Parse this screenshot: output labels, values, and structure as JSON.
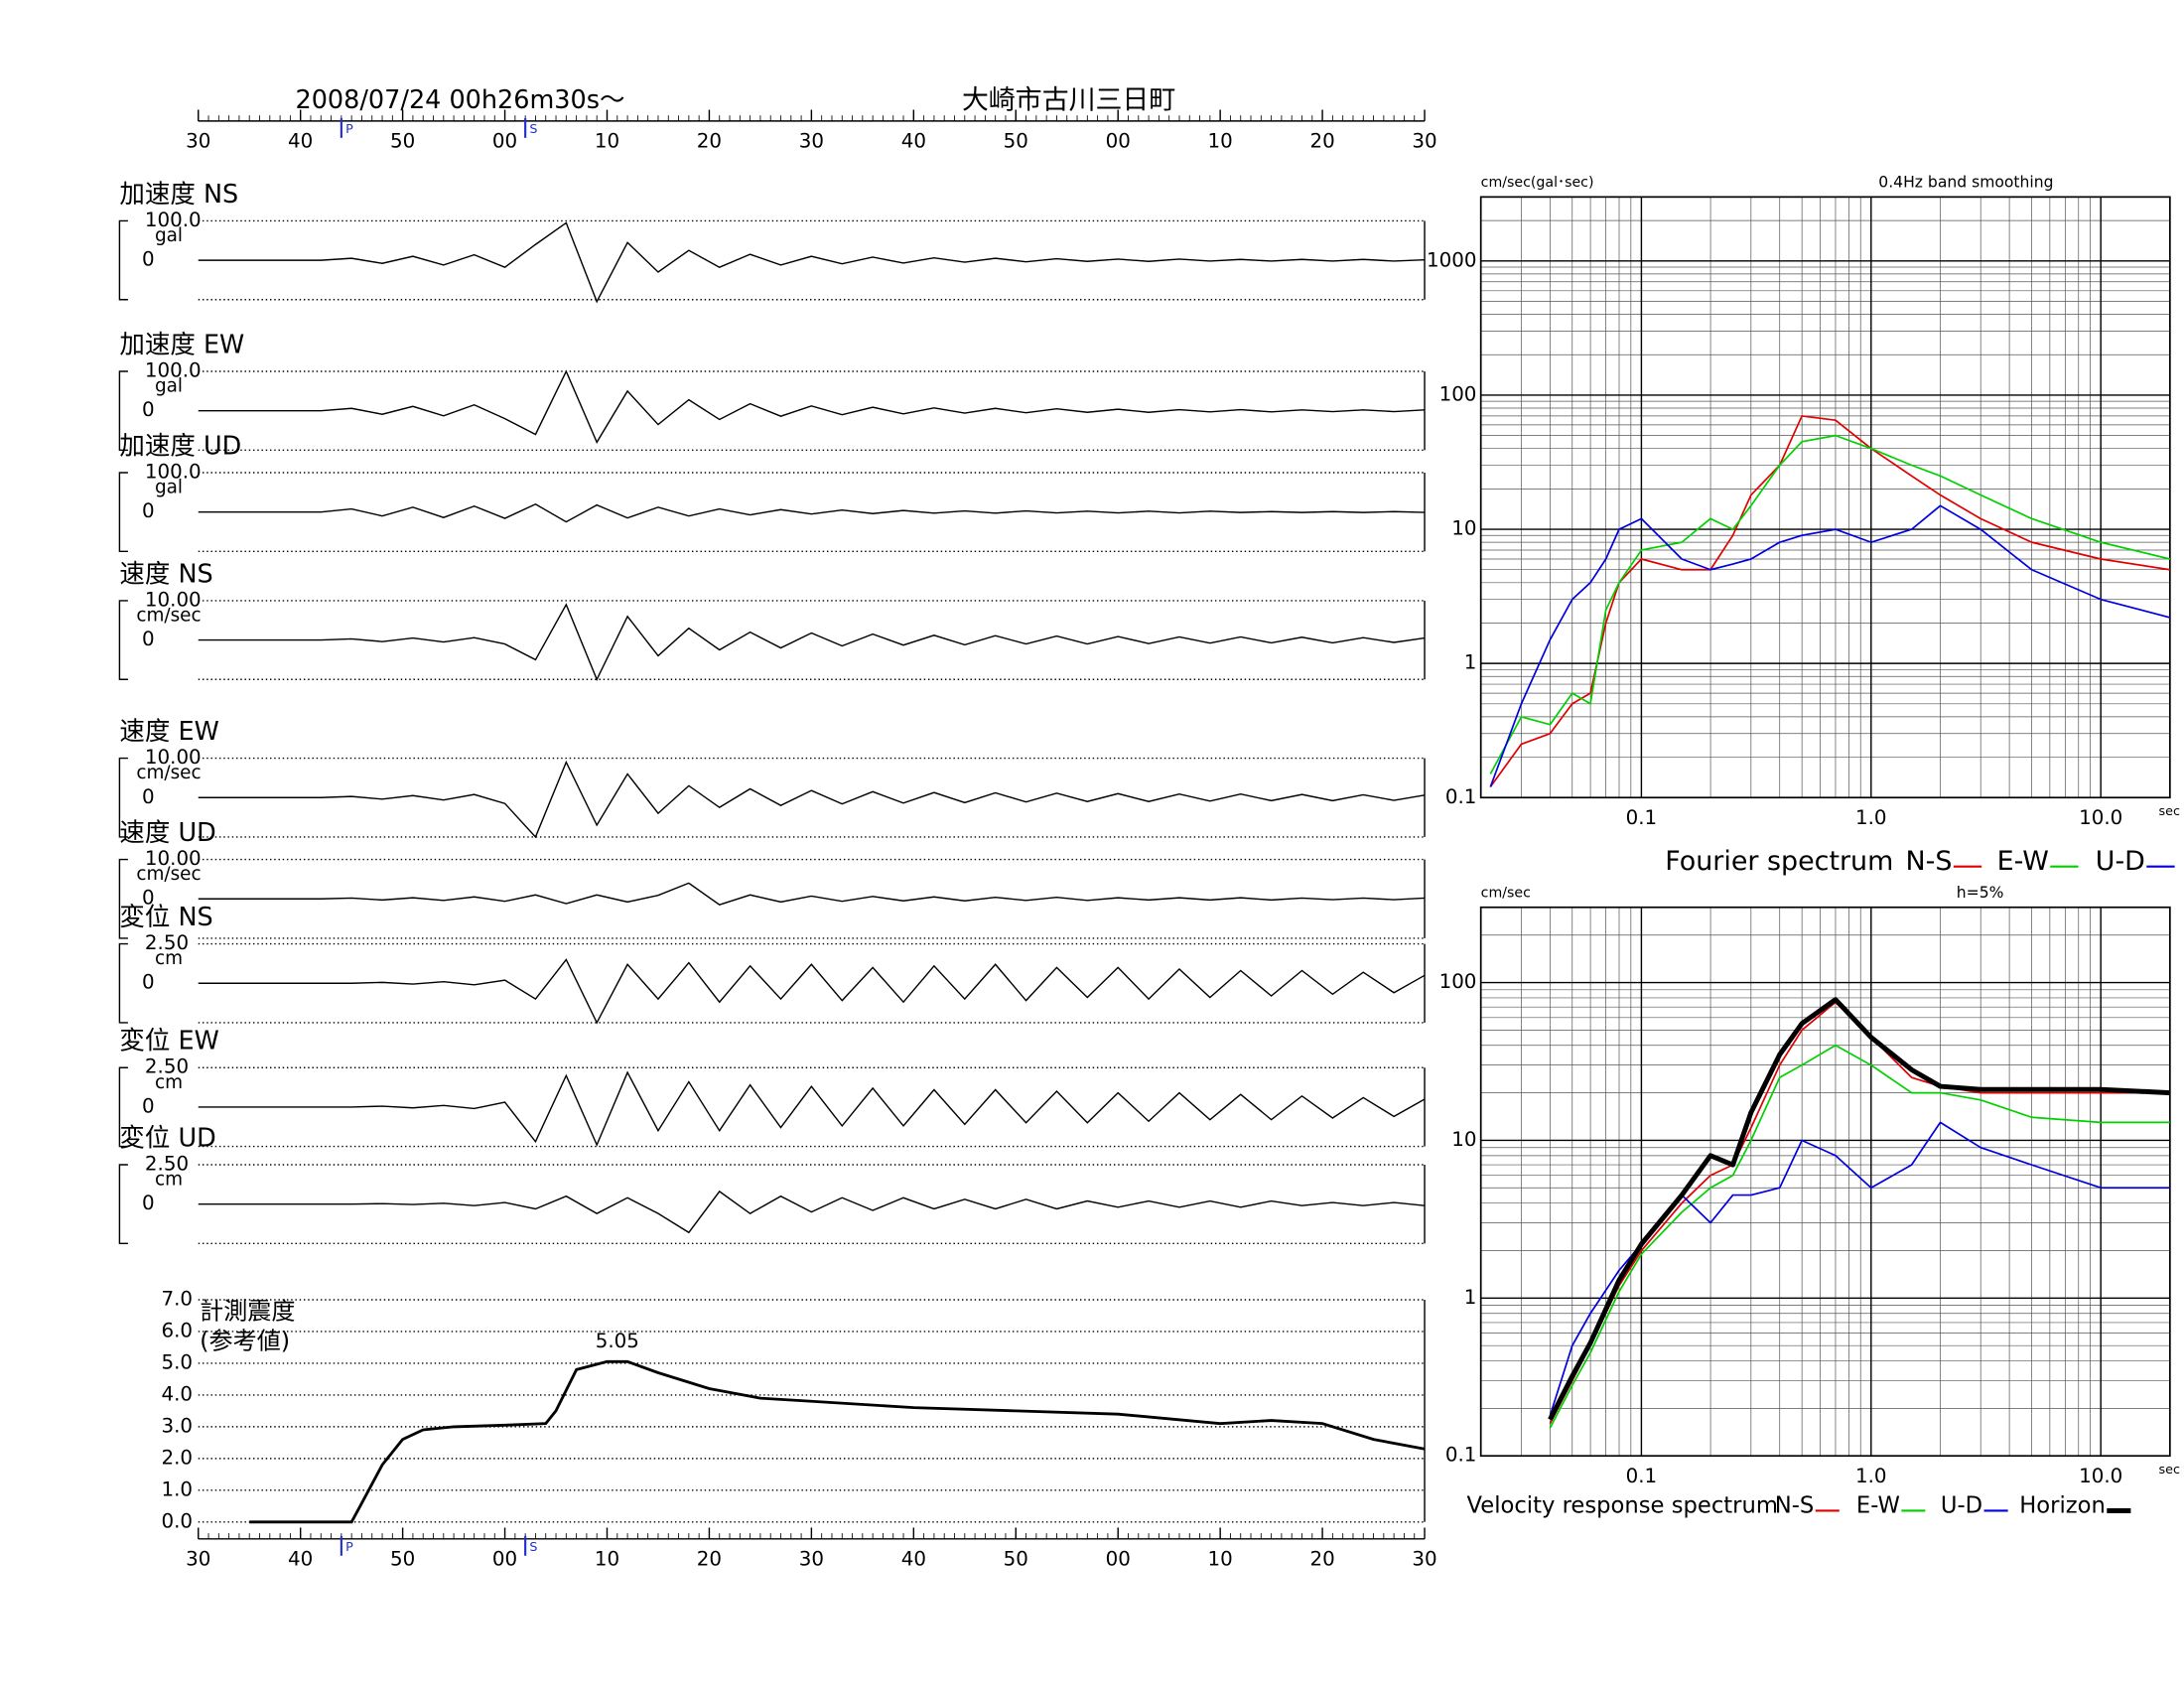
{
  "chart_data": [
    {
      "type": "line",
      "title": "2008/07/24  00h26m30s～",
      "subtitle": "大崎市古川三日町",
      "xlim": [
        0,
        120
      ],
      "xticks": [
        {
          "value": 0,
          "label": "30"
        },
        {
          "value": 10,
          "label": "40"
        },
        {
          "value": 20,
          "label": "50"
        },
        {
          "value": 30,
          "label": "00"
        },
        {
          "value": 40,
          "label": "10"
        },
        {
          "value": 50,
          "label": "20"
        },
        {
          "value": 60,
          "label": "30"
        },
        {
          "value": 70,
          "label": "40"
        },
        {
          "value": 80,
          "label": "50"
        },
        {
          "value": 90,
          "label": "00"
        },
        {
          "value": 100,
          "label": "10"
        },
        {
          "value": 110,
          "label": "20"
        },
        {
          "value": 120,
          "label": "30"
        }
      ],
      "phase_markers": [
        {
          "label": "P",
          "value": 14
        },
        {
          "label": "S",
          "value": 32
        }
      ],
      "x": [
        0,
        3,
        6,
        9,
        12,
        15,
        18,
        21,
        24,
        27,
        30,
        33,
        36,
        39,
        42,
        45,
        48,
        51,
        54,
        57,
        60,
        63,
        66,
        69,
        72,
        75,
        78,
        81,
        84,
        87,
        90,
        93,
        96,
        99,
        102,
        105,
        108,
        111,
        114,
        117,
        120
      ],
      "series": [
        {
          "name": "加速度 NS",
          "unit": "gal",
          "color": "#000000",
          "ylim": [
            -100,
            100
          ],
          "yticks": [
            {
              "value": 100,
              "label": "100.0"
            },
            0
          ],
          "values": [
            0,
            0,
            0,
            0,
            0,
            5,
            -8,
            10,
            -12,
            14,
            -18,
            40,
            95,
            -105,
            45,
            -30,
            25,
            -18,
            15,
            -12,
            10,
            -9,
            8,
            -7,
            6,
            -5,
            5,
            -4,
            4,
            -3,
            3,
            -3,
            3,
            -2,
            2,
            -2,
            2,
            -2,
            2,
            -2,
            1
          ]
        },
        {
          "name": "加速度 EW",
          "unit": "gal",
          "color": "#000000",
          "ylim": [
            -100,
            100
          ],
          "yticks": [
            {
              "value": 100,
              "label": "100.0"
            },
            0
          ],
          "values": [
            0,
            0,
            0,
            0,
            0,
            6,
            -9,
            11,
            -13,
            15,
            -20,
            -60,
            100,
            -80,
            50,
            -35,
            28,
            -22,
            18,
            -14,
            12,
            -10,
            9,
            -8,
            7,
            -6,
            6,
            -5,
            5,
            -4,
            4,
            -4,
            3,
            -3,
            3,
            -3,
            2,
            -2,
            2,
            -2,
            2
          ]
        },
        {
          "name": "加速度 UD",
          "unit": "gal",
          "color": "#000000",
          "ylim": [
            -100,
            100
          ],
          "yticks": [
            {
              "value": 100,
              "label": "100.0"
            },
            0
          ],
          "values": [
            0,
            0,
            0,
            0,
            0,
            8,
            -10,
            12,
            -14,
            15,
            -16,
            20,
            -25,
            18,
            -15,
            12,
            -10,
            8,
            -7,
            6,
            -5,
            5,
            -4,
            4,
            -3,
            3,
            -3,
            3,
            -2,
            2,
            -2,
            2,
            -2,
            2,
            -1,
            1,
            -1,
            1,
            -1,
            1,
            -1
          ]
        },
        {
          "name": "速度 NS",
          "unit": "cm/sec",
          "color": "#000000",
          "ylim": [
            -10,
            10
          ],
          "yticks": [
            {
              "value": 10,
              "label": "10.00"
            },
            0
          ],
          "values": [
            0,
            0,
            0,
            0,
            0,
            0.3,
            -0.4,
            0.5,
            -0.5,
            0.6,
            -1,
            -5,
            9,
            -10,
            6,
            -4,
            3,
            -2.5,
            2,
            -2,
            1.8,
            -1.5,
            1.5,
            -1.3,
            1.2,
            -1.2,
            1.1,
            -1,
            1,
            -1,
            0.9,
            -0.9,
            0.8,
            -0.8,
            0.8,
            -0.7,
            0.7,
            -0.7,
            0.6,
            -0.6,
            0.5
          ]
        },
        {
          "name": "速度 EW",
          "unit": "cm/sec",
          "color": "#000000",
          "ylim": [
            -10,
            10
          ],
          "yticks": [
            {
              "value": 10,
              "label": "10.00"
            },
            0
          ],
          "values": [
            0,
            0,
            0,
            0,
            0,
            0.3,
            -0.4,
            0.5,
            -0.6,
            0.8,
            -1.5,
            -10,
            9,
            -7,
            6,
            -4,
            3,
            -2.5,
            2.2,
            -2,
            1.8,
            -1.6,
            1.5,
            -1.4,
            1.3,
            -1.3,
            1.2,
            -1.1,
            1.1,
            -1,
            1,
            -1,
            0.9,
            -0.9,
            0.9,
            -0.8,
            0.8,
            -0.8,
            0.7,
            -0.7,
            0.6
          ]
        },
        {
          "name": "速度 UD",
          "unit": "cm/sec",
          "color": "#000000",
          "ylim": [
            -10,
            10
          ],
          "yticks": [
            {
              "value": 10,
              "label": "10.00"
            },
            0
          ],
          "values": [
            0,
            0,
            0,
            0,
            0,
            0.2,
            -0.3,
            0.3,
            -0.4,
            0.5,
            -0.6,
            1,
            -1.2,
            1,
            -0.8,
            0.9,
            4,
            -1.5,
            1,
            -0.8,
            0.7,
            -0.6,
            0.6,
            -0.5,
            0.5,
            -0.5,
            0.4,
            -0.4,
            0.4,
            -0.4,
            0.3,
            -0.3,
            0.3,
            -0.3,
            0.3,
            -0.3,
            0.2,
            -0.2,
            0.2,
            -0.2,
            0.2
          ]
        },
        {
          "name": "変位 NS",
          "unit": "cm",
          "color": "#000000",
          "ylim": [
            -2.5,
            2.5
          ],
          "yticks": [
            {
              "value": 2.5,
              "label": "2.50"
            },
            0
          ],
          "values": [
            0,
            0,
            0,
            0,
            0,
            0,
            0.05,
            -0.05,
            0.1,
            -0.1,
            0.2,
            -1,
            1.5,
            -2.5,
            1.2,
            -1,
            1.3,
            -1.2,
            1.1,
            -1,
            1.2,
            -1.1,
            1,
            -1.2,
            1.1,
            -1,
            1.2,
            -1.1,
            1,
            -0.9,
            1,
            -1,
            0.9,
            -0.9,
            0.8,
            -0.8,
            0.8,
            -0.7,
            0.7,
            -0.6,
            0.5
          ]
        },
        {
          "name": "変位 EW",
          "unit": "cm",
          "color": "#000000",
          "ylim": [
            -2.5,
            2.5
          ],
          "yticks": [
            {
              "value": 2.5,
              "label": "2.50"
            },
            0
          ],
          "values": [
            0,
            0,
            0,
            0,
            0,
            0,
            0.05,
            -0.05,
            0.1,
            -0.1,
            0.3,
            -2.2,
            2,
            -2.4,
            2.2,
            -1.5,
            1.6,
            -1.5,
            1.4,
            -1.3,
            1.3,
            -1.2,
            1.2,
            -1.2,
            1.1,
            -1.1,
            1.1,
            -1,
            1,
            -1,
            0.9,
            -0.9,
            0.9,
            -0.8,
            0.8,
            -0.8,
            0.7,
            -0.7,
            0.6,
            -0.6,
            0.5
          ]
        },
        {
          "name": "変位 UD",
          "unit": "cm",
          "color": "#000000",
          "ylim": [
            -2.5,
            2.5
          ],
          "yticks": [
            {
              "value": 2.5,
              "label": "2.50"
            },
            0
          ],
          "values": [
            0,
            0,
            0,
            0,
            0,
            0,
            0.03,
            -0.03,
            0.05,
            -0.1,
            0.1,
            -0.3,
            0.5,
            -0.6,
            0.4,
            -0.6,
            -1.8,
            0.8,
            -0.6,
            0.5,
            -0.5,
            0.4,
            -0.4,
            0.4,
            -0.3,
            0.3,
            -0.3,
            0.3,
            -0.3,
            0.2,
            -0.2,
            0.2,
            -0.2,
            0.2,
            -0.2,
            0.2,
            -0.1,
            0.1,
            -0.1,
            0.1,
            -0.1
          ]
        }
      ]
    },
    {
      "type": "line",
      "title": "計測震度",
      "subtitle": "(参考値)",
      "color": "#000000",
      "xlim": [
        0,
        120
      ],
      "xticks": [
        {
          "value": 0,
          "label": "30"
        },
        {
          "value": 10,
          "label": "40"
        },
        {
          "value": 20,
          "label": "50"
        },
        {
          "value": 30,
          "label": "00"
        },
        {
          "value": 40,
          "label": "10"
        },
        {
          "value": 50,
          "label": "20"
        },
        {
          "value": 60,
          "label": "30"
        },
        {
          "value": 70,
          "label": "40"
        },
        {
          "value": 80,
          "label": "50"
        },
        {
          "value": 90,
          "label": "00"
        },
        {
          "value": 100,
          "label": "10"
        },
        {
          "value": 110,
          "label": "20"
        },
        {
          "value": 120,
          "label": "30"
        }
      ],
      "phase_markers": [
        {
          "label": "P",
          "value": 14
        },
        {
          "label": "S",
          "value": 32
        }
      ],
      "ylim": [
        0,
        7
      ],
      "yticks": [
        {
          "value": 0,
          "label": "0.0"
        },
        {
          "value": 1,
          "label": "1.0"
        },
        {
          "value": 2,
          "label": "2.0"
        },
        {
          "value": 3,
          "label": "3.0"
        },
        {
          "value": 4,
          "label": "4.0"
        },
        {
          "value": 5,
          "label": "5.0"
        },
        {
          "value": 6,
          "label": "6.0"
        },
        {
          "value": 7,
          "label": "7.0"
        }
      ],
      "x": [
        5,
        15,
        16,
        18,
        20,
        22,
        25,
        30,
        34,
        35,
        37,
        40,
        42,
        45,
        50,
        55,
        60,
        70,
        80,
        90,
        100,
        105,
        110,
        115,
        120
      ],
      "values": [
        0,
        0,
        0.6,
        1.8,
        2.6,
        2.9,
        3.0,
        3.05,
        3.1,
        3.5,
        4.8,
        5.05,
        5.05,
        4.7,
        4.2,
        3.9,
        3.8,
        3.6,
        3.5,
        3.4,
        3.1,
        3.2,
        3.1,
        2.6,
        2.3
      ],
      "annotations": [
        {
          "x": 41,
          "value": 5.05
        }
      ]
    },
    {
      "type": "line",
      "title": "Fourier spectrum",
      "ylabel": "cm/sec(gal･sec)",
      "xlabel": "sec",
      "note": "0.4Hz band smoothing",
      "log_x": true,
      "log_y": true,
      "grid": true,
      "xlim": [
        0.02,
        20
      ],
      "ylim": [
        0.1,
        3000
      ],
      "xticks": [
        0.1,
        {
          "value": 1,
          "label": "1.0"
        },
        {
          "value": 10,
          "label": "10.0"
        }
      ],
      "yticks": [
        0.1,
        1,
        10,
        100,
        1000
      ],
      "x": [
        0.022,
        0.03,
        0.04,
        0.05,
        0.06,
        0.07,
        0.08,
        0.1,
        0.15,
        0.2,
        0.25,
        0.3,
        0.4,
        0.5,
        0.7,
        1,
        1.5,
        2,
        3,
        5,
        10,
        20
      ],
      "series": [
        {
          "name": "N-S",
          "color": "#e00000",
          "values": [
            0.12,
            0.25,
            0.3,
            0.5,
            0.6,
            2,
            4,
            6,
            5,
            5,
            9,
            18,
            30,
            70,
            65,
            40,
            25,
            18,
            12,
            8,
            6,
            5
          ]
        },
        {
          "name": "E-W",
          "color": "#00d000",
          "values": [
            0.15,
            0.4,
            0.35,
            0.6,
            0.5,
            2.5,
            4,
            7,
            8,
            12,
            10,
            15,
            30,
            45,
            50,
            40,
            30,
            25,
            18,
            12,
            8,
            6
          ]
        },
        {
          "name": "U-D",
          "color": "#0000e0",
          "values": [
            0.12,
            0.5,
            1.5,
            3,
            4,
            6,
            10,
            12,
            6,
            5,
            5.5,
            6,
            8,
            9,
            10,
            8,
            10,
            15,
            10,
            5,
            3,
            2.2
          ]
        }
      ]
    },
    {
      "type": "line",
      "title": "Velocity response spectrum",
      "ylabel": "cm/sec",
      "xlabel": "sec",
      "note": "h=5%",
      "log_x": true,
      "log_y": true,
      "grid": true,
      "xlim": [
        0.02,
        20
      ],
      "ylim": [
        0.1,
        300
      ],
      "xticks": [
        0.1,
        {
          "value": 1,
          "label": "1.0"
        },
        {
          "value": 10,
          "label": "10.0"
        }
      ],
      "yticks": [
        0.1,
        1,
        10,
        100
      ],
      "x": [
        0.04,
        0.05,
        0.06,
        0.08,
        0.1,
        0.15,
        0.2,
        0.25,
        0.3,
        0.4,
        0.5,
        0.7,
        1,
        1.5,
        2,
        3,
        5,
        10,
        20
      ],
      "series": [
        {
          "name": "N-S",
          "color": "#e00000",
          "values": [
            0.16,
            0.3,
            0.5,
            1.2,
            2,
            4,
            6,
            7,
            12,
            30,
            50,
            75,
            45,
            25,
            22,
            20,
            20,
            20,
            20
          ]
        },
        {
          "name": "E-W",
          "color": "#00d000",
          "values": [
            0.15,
            0.28,
            0.45,
            1.1,
            1.9,
            3.5,
            5,
            6,
            10,
            25,
            30,
            40,
            30,
            20,
            20,
            18,
            14,
            13,
            13
          ]
        },
        {
          "name": "U-D",
          "color": "#0000e0",
          "values": [
            0.18,
            0.5,
            0.8,
            1.5,
            2.2,
            4.5,
            3,
            4.5,
            4.5,
            5,
            10,
            8,
            5,
            7,
            13,
            9,
            7,
            5,
            5
          ]
        },
        {
          "name": "Horizon",
          "color": "#000000",
          "line_width": 3.5,
          "values": [
            0.17,
            0.32,
            0.52,
            1.3,
            2.2,
            4.5,
            8,
            7,
            15,
            35,
            55,
            78,
            45,
            28,
            22,
            21,
            21,
            21,
            20
          ]
        }
      ]
    }
  ]
}
